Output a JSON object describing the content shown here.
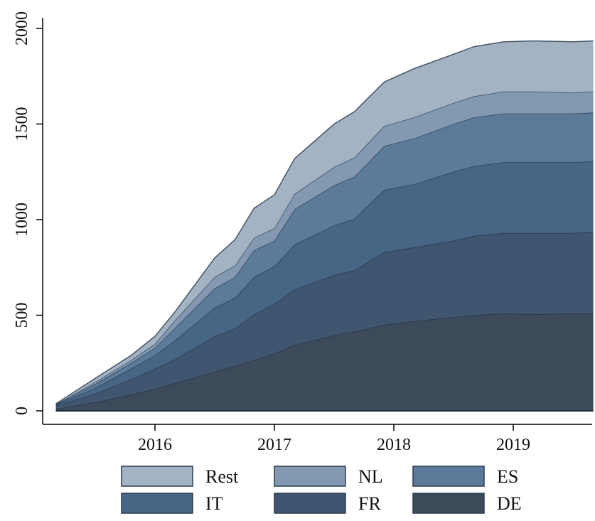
{
  "chart_data": {
    "type": "area",
    "stacked": true,
    "xlim": [
      2015.15,
      2019.7
    ],
    "ylim": [
      0,
      2000
    ],
    "x_ticks": [
      {
        "value": 2016,
        "label": "2016"
      },
      {
        "value": 2017,
        "label": "2017"
      },
      {
        "value": 2018,
        "label": "2018"
      },
      {
        "value": 2019,
        "label": "2019"
      }
    ],
    "y_ticks": [
      {
        "value": 0,
        "label": "0"
      },
      {
        "value": 500,
        "label": "500"
      },
      {
        "value": 1000,
        "label": "1000"
      },
      {
        "value": 1500,
        "label": "1500"
      },
      {
        "value": 2000,
        "label": "2000"
      }
    ],
    "grid": false,
    "legend_position": "bottom",
    "x": [
      2015.17,
      2015.5,
      2015.8,
      2016.0,
      2016.17,
      2016.5,
      2016.67,
      2016.83,
      2017.0,
      2017.17,
      2017.5,
      2017.67,
      2017.92,
      2018.17,
      2018.5,
      2018.67,
      2018.92,
      2019.17,
      2019.5,
      2019.67
    ],
    "series": [
      {
        "name": "DE",
        "color": "#3c4a5a",
        "values": [
          10,
          45,
          85,
          115,
          145,
          205,
          235,
          265,
          300,
          345,
          395,
          415,
          450,
          470,
          490,
          500,
          510,
          505,
          510,
          510
        ]
      },
      {
        "name": "FR",
        "color": "#405570",
        "values": [
          15,
          45,
          80,
          105,
          125,
          185,
          195,
          240,
          260,
          290,
          315,
          320,
          380,
          385,
          400,
          415,
          420,
          425,
          420,
          425
        ]
      },
      {
        "name": "IT",
        "color": "#476584",
        "values": [
          5,
          30,
          55,
          70,
          100,
          150,
          160,
          195,
          195,
          235,
          260,
          270,
          325,
          330,
          360,
          365,
          370,
          370,
          370,
          370
        ]
      },
      {
        "name": "ES",
        "color": "#5c7b99",
        "values": [
          2,
          20,
          30,
          40,
          65,
          100,
          110,
          140,
          135,
          185,
          210,
          220,
          230,
          240,
          250,
          255,
          255,
          255,
          255,
          255
        ]
      },
      {
        "name": "NL",
        "color": "#8399b1",
        "values": [
          2,
          10,
          15,
          20,
          40,
          60,
          60,
          65,
          65,
          80,
          95,
          100,
          105,
          110,
          110,
          110,
          115,
          115,
          110,
          110
        ]
      },
      {
        "name": "Rest",
        "color": "#a3b3c3",
        "values": [
          3,
          20,
          25,
          40,
          45,
          100,
          135,
          155,
          175,
          185,
          225,
          240,
          230,
          255,
          255,
          260,
          260,
          265,
          265,
          265
        ]
      }
    ],
    "legend": [
      {
        "name": "Rest",
        "color": "#a3b3c3"
      },
      {
        "name": "NL",
        "color": "#8399b1"
      },
      {
        "name": "ES",
        "color": "#5c7b99"
      },
      {
        "name": "IT",
        "color": "#476584"
      },
      {
        "name": "FR",
        "color": "#405570"
      },
      {
        "name": "DE",
        "color": "#3c4a5a"
      }
    ]
  }
}
